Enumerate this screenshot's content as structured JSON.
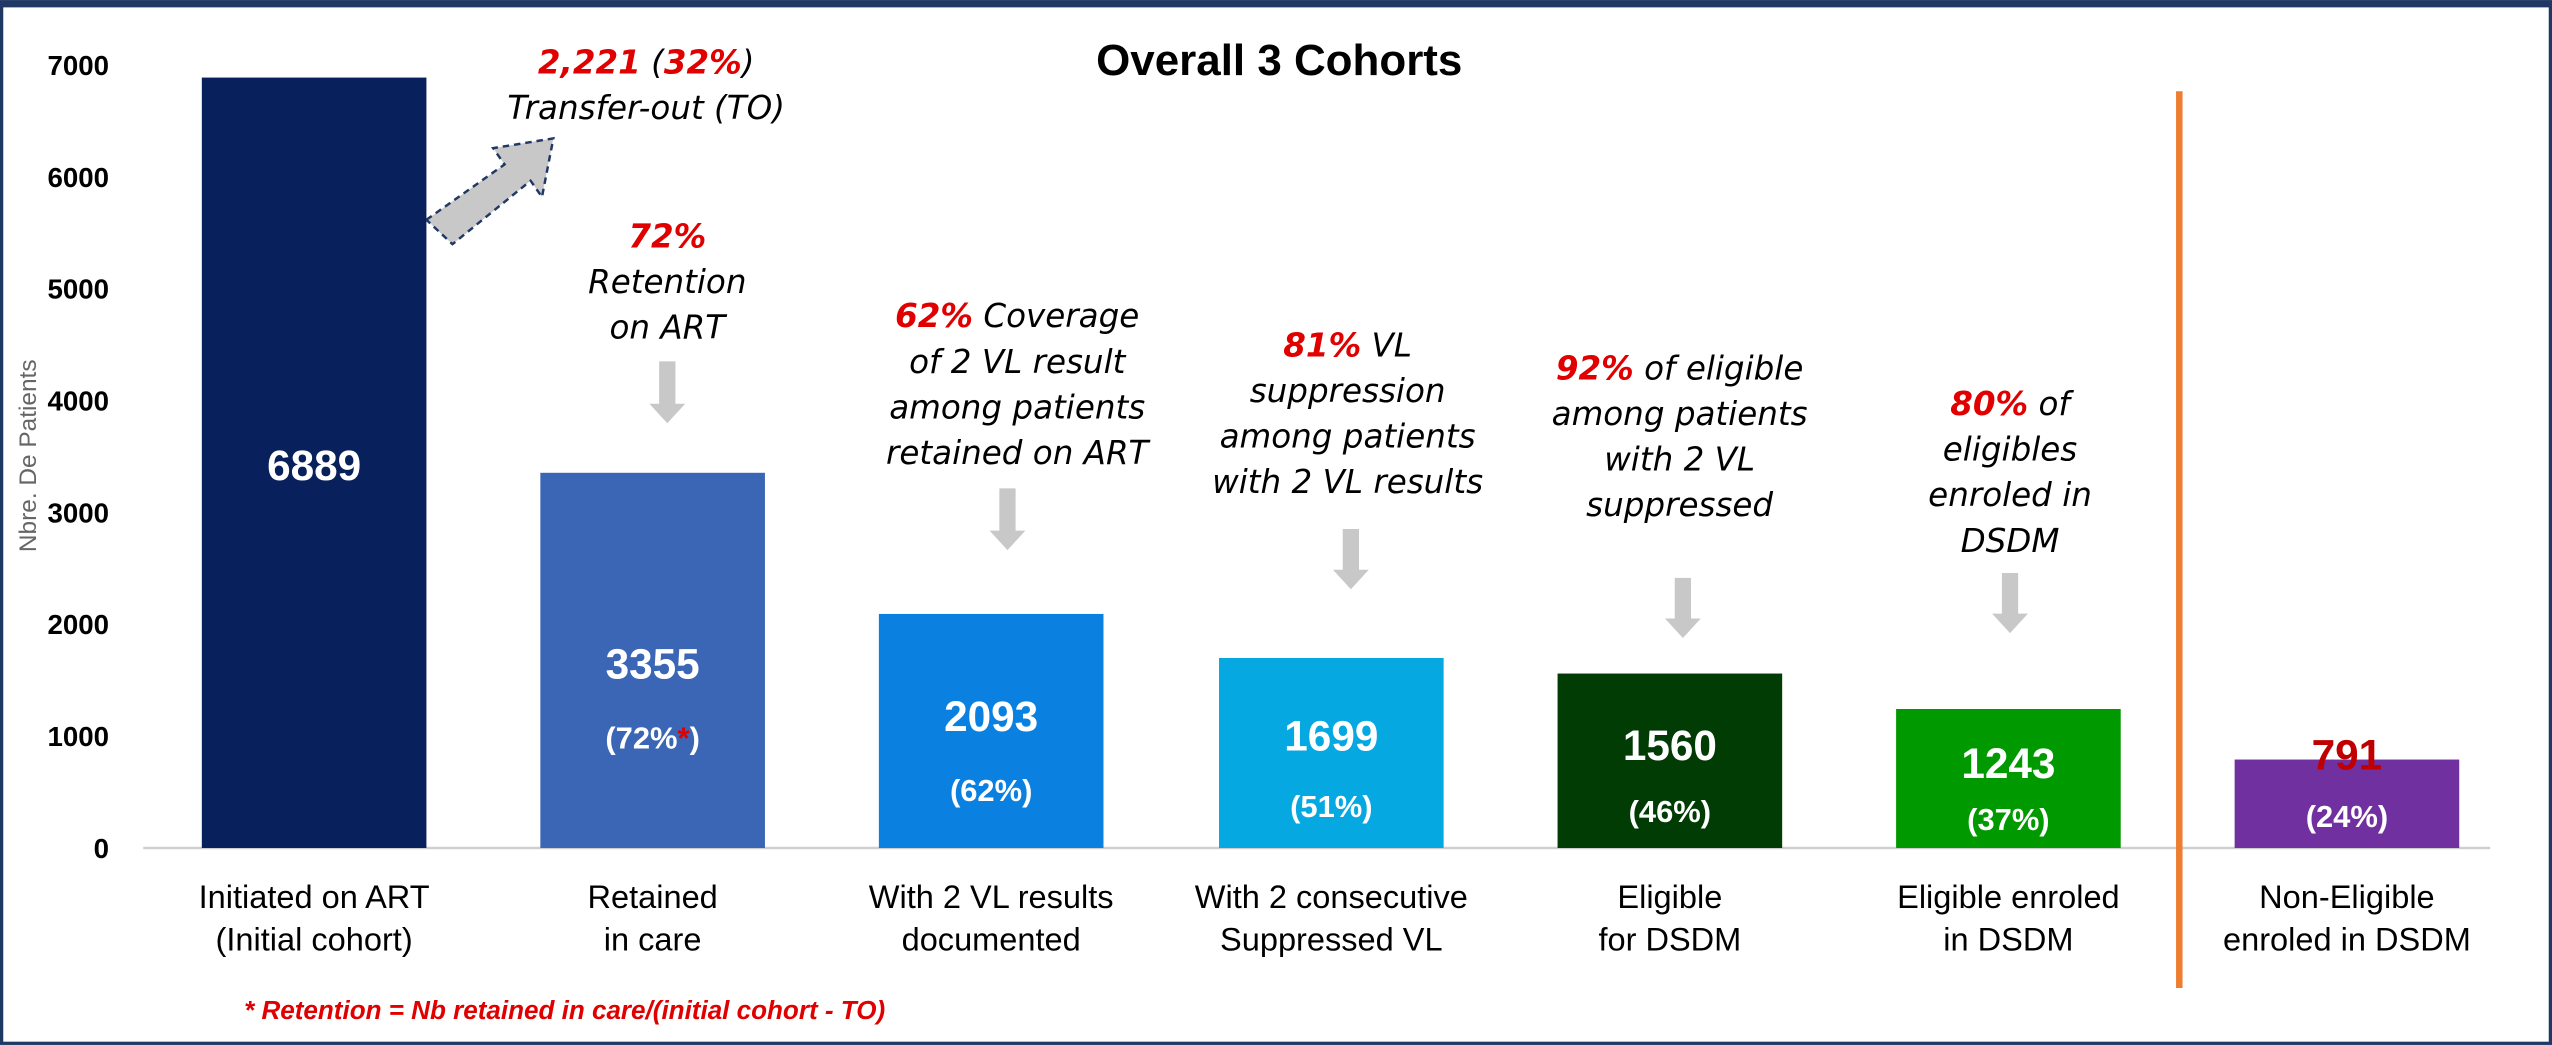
{
  "chart_data": {
    "type": "bar",
    "title": "Overall 3 Cohorts",
    "y_label": "Nbre. De Patients",
    "categories": [
      [
        "Initiated on ART",
        "(Initial cohort)"
      ],
      [
        "Retained",
        "in care"
      ],
      [
        "With 2 VL results",
        "documented"
      ],
      [
        "With 2 consecutive",
        "Suppressed VL"
      ],
      [
        "Eligible",
        "for DSDM"
      ],
      [
        "Eligible enroled",
        "in DSDM"
      ],
      [
        "Non-Eligible",
        "enroled in DSDM"
      ]
    ],
    "values": [
      6889,
      3355,
      2093,
      1699,
      1560,
      1243,
      791
    ],
    "colors": [
      "#08205c",
      "#3a66b5",
      "#0a80e0",
      "#06a8e2",
      "#003c04",
      "#009a00",
      "#7030a0"
    ],
    "value_label_colors": [
      "#ffffff",
      "#ffffff",
      "#ffffff",
      "#ffffff",
      "#ffffff",
      "#ffffff",
      "#c00000"
    ],
    "percent_labels": [
      null,
      "(72%*)",
      "(62%)",
      "(51%)",
      "(46%)",
      "(37%)",
      "(24%)"
    ],
    "ylim": [
      0,
      7000
    ],
    "yticks": [
      0,
      1000,
      2000,
      3000,
      4000,
      5000,
      6000,
      7000
    ],
    "annotations": [
      {
        "lines": [
          [
            {
              "text": "2,221",
              "color": "#e00000"
            },
            {
              "text": " ("
            },
            {
              "text": "32%",
              "color": "#e00000"
            },
            {
              "text": ")"
            }
          ],
          [
            {
              "text": "Transfer-out (TO)"
            }
          ]
        ]
      },
      {
        "lines": [
          [
            {
              "text": "72%",
              "color": "#e00000"
            }
          ],
          [
            {
              "text": "Retention"
            }
          ],
          [
            {
              "text": "on ART"
            }
          ]
        ]
      },
      {
        "lines": [
          [
            {
              "text": "62%",
              "color": "#e00000"
            },
            {
              "text": " Coverage"
            }
          ],
          [
            {
              "text": "of 2 VL result"
            }
          ],
          [
            {
              "text": "among patients"
            }
          ],
          [
            {
              "text": "retained on ART"
            }
          ]
        ]
      },
      {
        "lines": [
          [
            {
              "text": "81%",
              "color": "#e00000"
            },
            {
              "text": " VL"
            }
          ],
          [
            {
              "text": "suppression"
            }
          ],
          [
            {
              "text": "among patients"
            }
          ],
          [
            {
              "text": "with 2 VL results"
            }
          ]
        ]
      },
      {
        "lines": [
          [
            {
              "text": "92%",
              "color": "#e00000"
            },
            {
              "text": " of eligible"
            }
          ],
          [
            {
              "text": "among patients"
            }
          ],
          [
            {
              "text": "with 2 VL"
            }
          ],
          [
            {
              "text": "suppressed"
            }
          ]
        ]
      },
      {
        "lines": [
          [
            {
              "text": "80%",
              "color": "#e00000"
            },
            {
              "text": " of"
            }
          ],
          [
            {
              "text": "eligibles"
            }
          ],
          [
            {
              "text": "enroled in"
            }
          ],
          [
            {
              "text": "DSDM"
            }
          ]
        ]
      }
    ],
    "footnote": "* Retention = Nb retained in care/(initial cohort - TO)"
  }
}
